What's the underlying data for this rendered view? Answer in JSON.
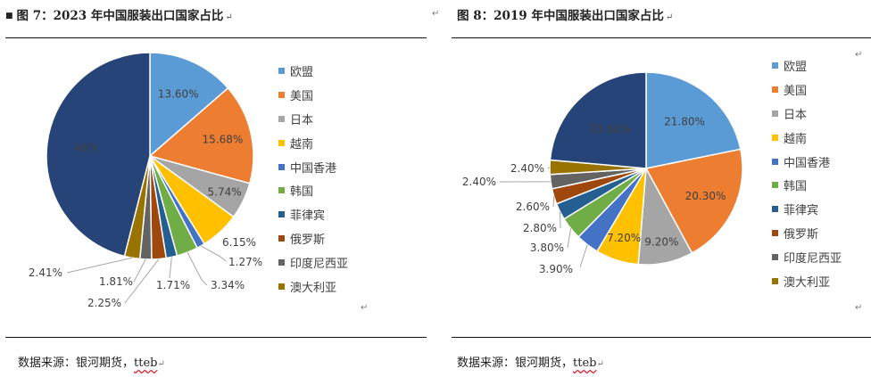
{
  "left": {
    "title_bullet": "■",
    "title": "图 7：2023 年中国服装出口国家占比",
    "return_mark": "↵",
    "source_label": "数据来源：",
    "source_text": "银河期货，",
    "source_underlined": "tteb",
    "source_return": "↵"
  },
  "right": {
    "title": "图 8：2019 年中国服装出口国家占比",
    "return_mark": "↵",
    "source_label": "数据来源：",
    "source_text": "银河期货，",
    "source_underlined": "tteb",
    "source_return": "↵"
  },
  "colors": {
    "欧盟": "#5B9BD5",
    "美国": "#ED7D31",
    "日本": "#A5A5A5",
    "越南": "#FFC000",
    "中国香港": "#4472C4",
    "韩国": "#70AD47",
    "菲律宾": "#255E91",
    "俄罗斯": "#9E480E",
    "印度尼西亚": "#636363",
    "澳大利亚": "#997300",
    "other": "#264478"
  },
  "chart_data": [
    {
      "type": "pie",
      "title": "图 7：2023 年中国服装出口国家占比",
      "categories": [
        "欧盟",
        "美国",
        "日本",
        "越南",
        "中国香港",
        "韩国",
        "菲律宾",
        "俄罗斯",
        "印度尼西亚",
        "澳大利亚",
        ""
      ],
      "values": [
        13.6,
        15.68,
        5.74,
        6.15,
        1.27,
        3.34,
        1.71,
        2.25,
        1.81,
        2.41,
        46.04
      ],
      "labels": [
        "13.60%",
        "15.68%",
        "5.74%",
        "6.15%",
        "1.27%",
        "3.34%",
        "1.71%",
        "2.25%",
        "1.81%",
        "2.41%",
        "46%"
      ],
      "legend": [
        "欧盟",
        "美国",
        "日本",
        "越南",
        "中国香港",
        "韩国",
        "菲律宾",
        "俄罗斯",
        "印度尼西亚",
        "澳大利亚"
      ],
      "legend_position": "right"
    },
    {
      "type": "pie",
      "title": "图 8：2019 年中国服装出口国家占比",
      "categories": [
        "欧盟",
        "美国",
        "日本",
        "越南",
        "中国香港",
        "韩国",
        "菲律宾",
        "俄罗斯",
        "印度尼西亚",
        "澳大利亚",
        ""
      ],
      "values": [
        21.8,
        20.3,
        9.2,
        7.2,
        3.9,
        3.8,
        2.8,
        2.6,
        2.4,
        2.4,
        23.6
      ],
      "labels": [
        "21.80%",
        "20.30%",
        "9.20%",
        "7.20%",
        "3.90%",
        "3.80%",
        "2.80%",
        "2.60%",
        "2.40%",
        "2.40%",
        "23.60%"
      ],
      "legend": [
        "欧盟",
        "美国",
        "日本",
        "越南",
        "中国香港",
        "韩国",
        "菲律宾",
        "俄罗斯",
        "印度尼西亚",
        "澳大利亚"
      ],
      "legend_position": "right"
    }
  ]
}
